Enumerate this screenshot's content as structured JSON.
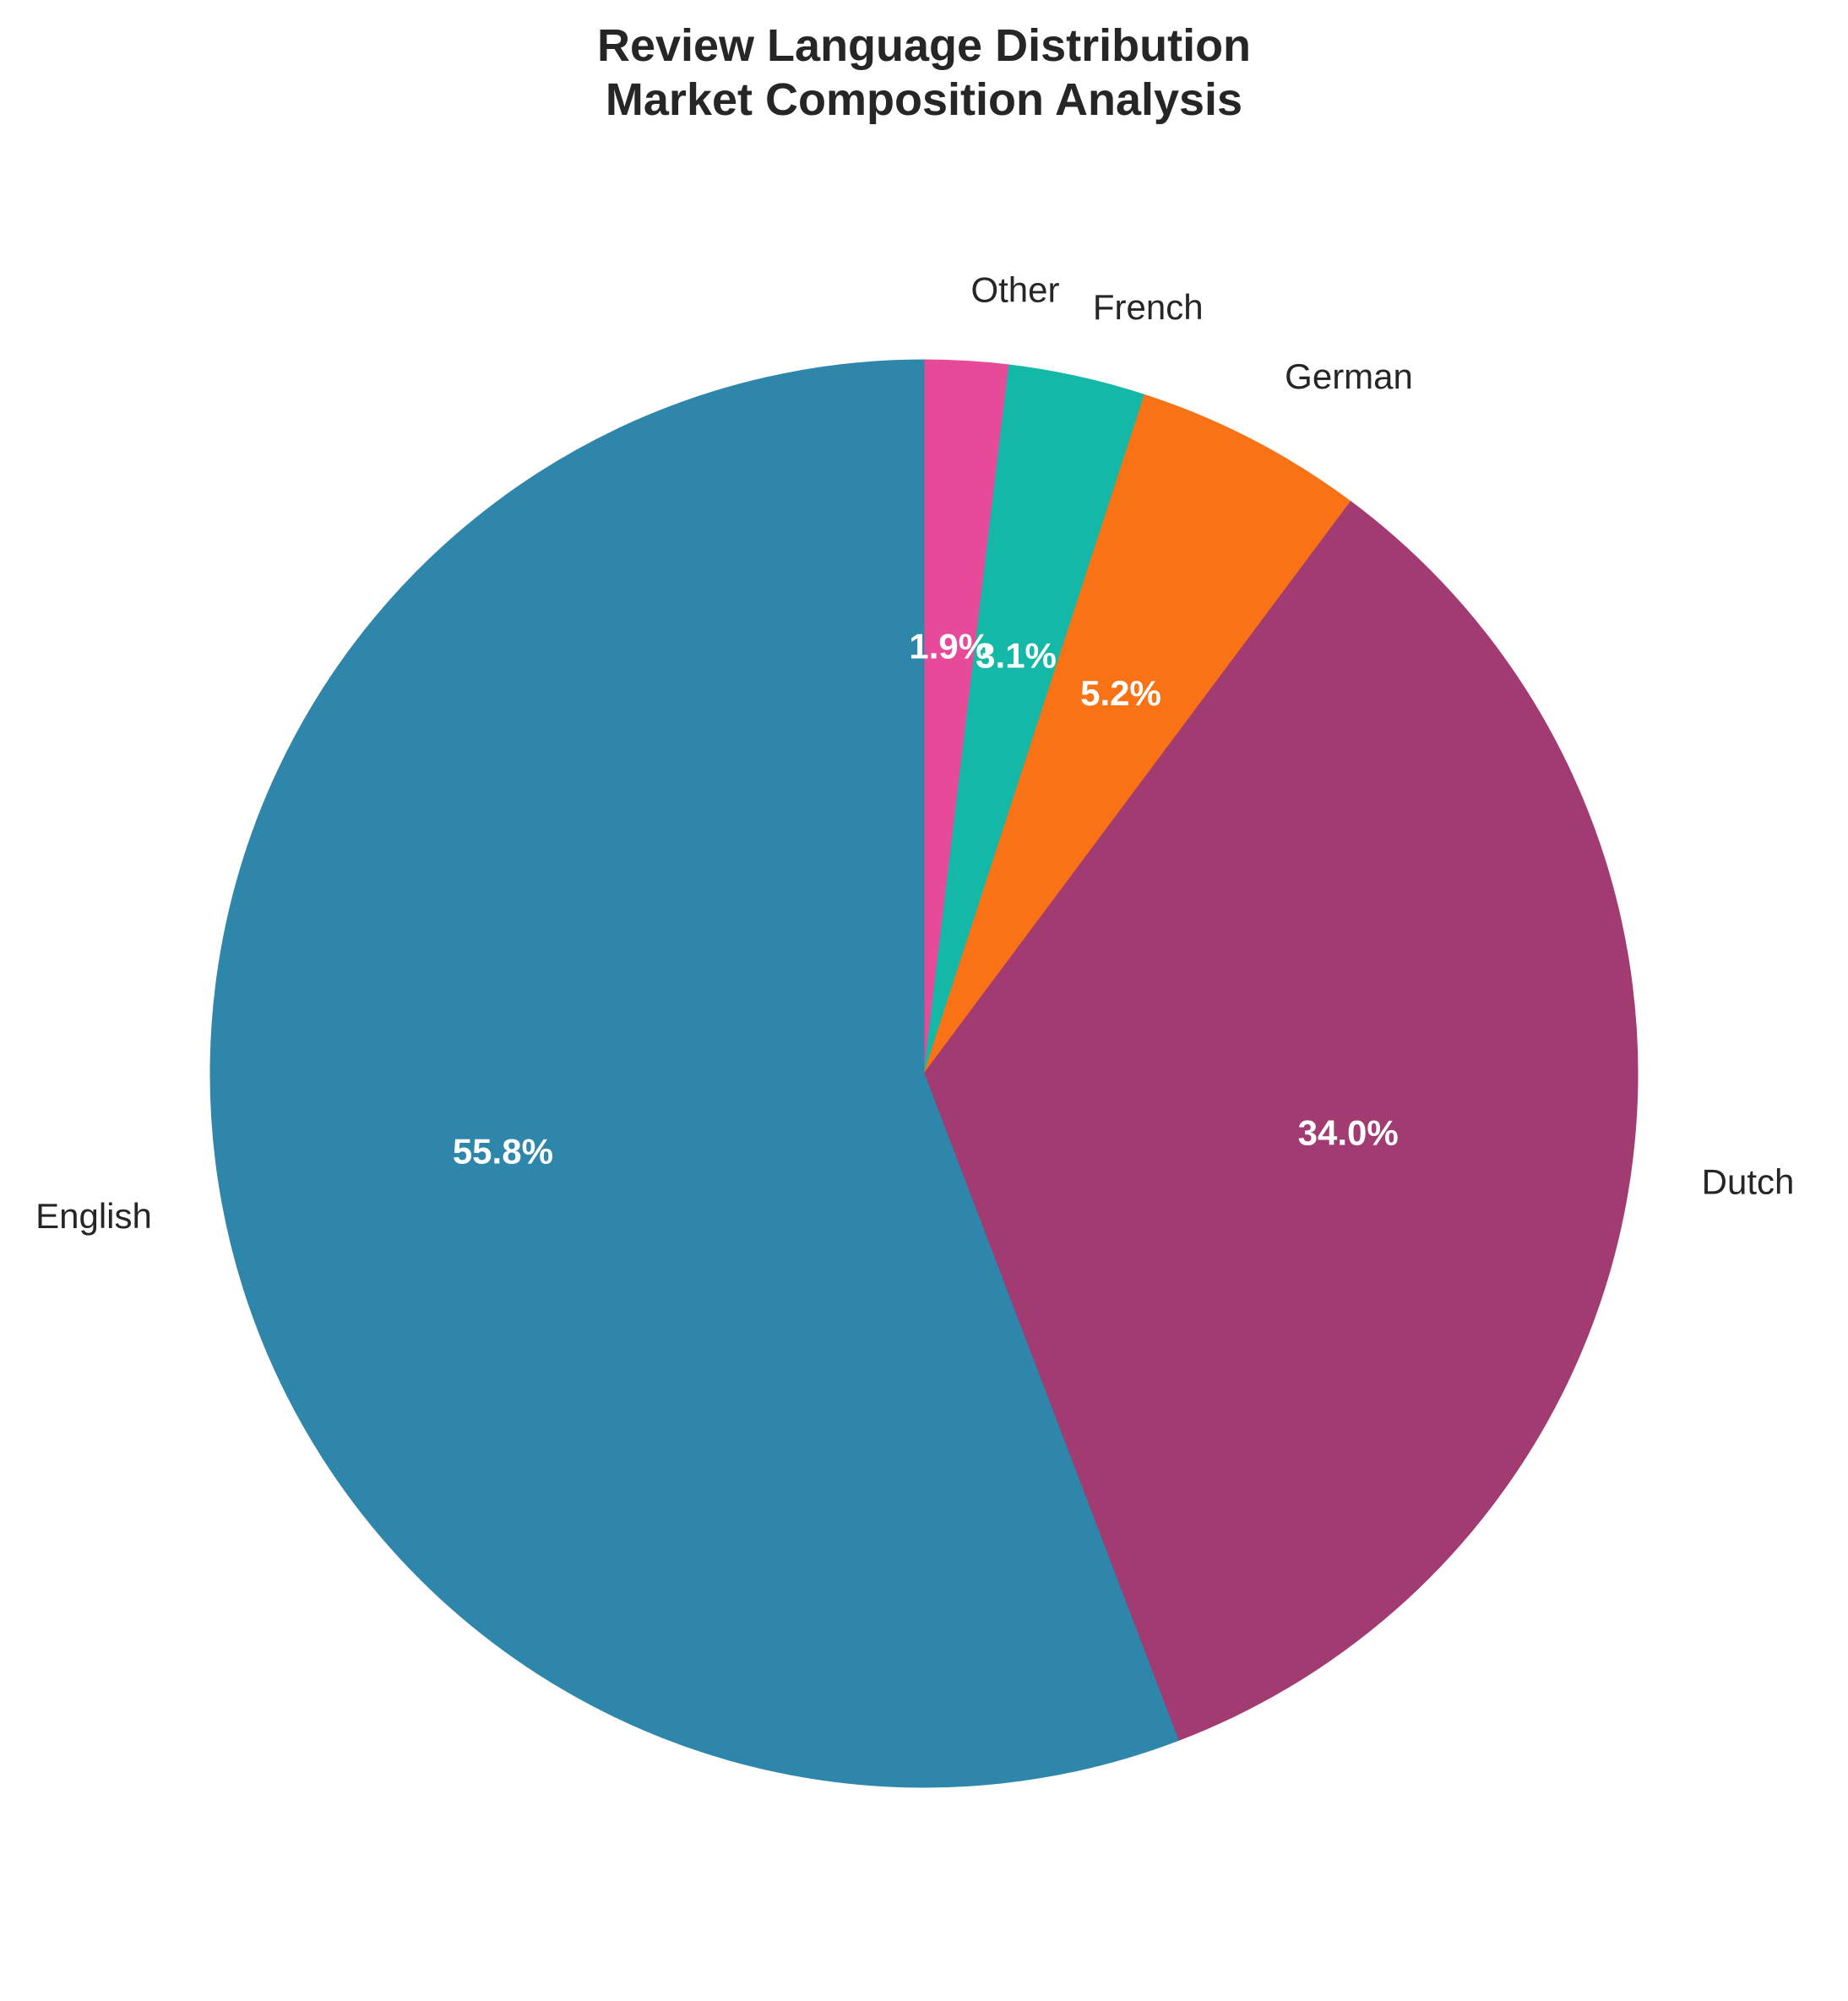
{
  "chart_data": {
    "type": "pie",
    "title_lines": [
      "Review Language Distribution",
      "Market Composition Analysis"
    ],
    "categories": [
      "Other",
      "French",
      "German",
      "Dutch",
      "English"
    ],
    "values": [
      1.9,
      3.1,
      5.2,
      34.0,
      55.8
    ],
    "value_labels": [
      "1.9%",
      "3.1%",
      "5.2%",
      "34.0%",
      "55.8%"
    ],
    "colors": [
      "#E84A9A",
      "#14B8A6",
      "#F97316",
      "#A23B72",
      "#2E86AB"
    ],
    "start_angle_deg": 90,
    "direction": "clockwise",
    "legend": "none"
  }
}
